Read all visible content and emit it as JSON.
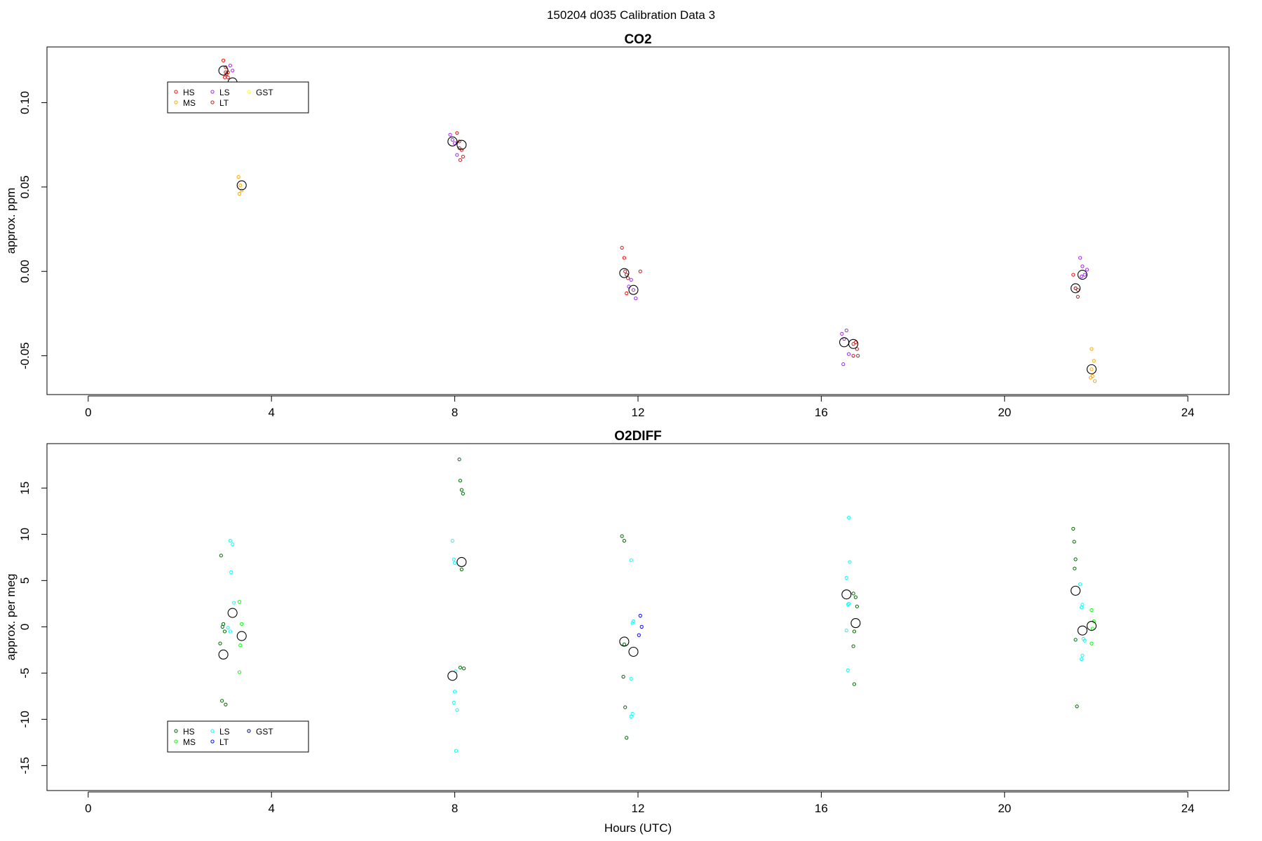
{
  "figure_title": "150204   d035   Calibration Data 3",
  "colors": {
    "HS": "#ff0000",
    "MS": "#ffa500",
    "LS": "#a020f0",
    "LT": "#b22222",
    "GST": "#ffff00",
    "HS2": "#006400",
    "MS2": "#00ff00",
    "LS2": "#00ffff",
    "LT2": "#0000ff",
    "GST2": "#00008b",
    "axis": "#000000",
    "mean": "#000000"
  },
  "chart_data": [
    {
      "type": "scatter",
      "title": "CO2",
      "xlabel": "",
      "ylabel": "approx. ppm",
      "xlim": [
        -0.9,
        24.9
      ],
      "ylim": [
        -0.073,
        0.133
      ],
      "xticks": [
        0,
        4,
        8,
        12,
        16,
        20,
        24
      ],
      "yticks": [
        -0.05,
        0.0,
        0.05,
        0.1
      ],
      "ytick_labels": [
        "-0.05",
        "0.00",
        "0.05",
        "0.10"
      ],
      "legend": {
        "position": "top-left",
        "entries": [
          "HS",
          "MS",
          "LS",
          "LT",
          "GST"
        ]
      },
      "series": [
        {
          "name": "HS",
          "color": "#ff0000",
          "x": [
            2.95,
            3.0,
            3.05,
            2.98,
            3.02,
            8.05,
            8.1,
            8.15,
            11.65,
            11.7,
            11.72,
            11.75,
            12.05,
            16.7,
            16.75,
            21.5,
            21.55,
            21.6
          ],
          "y": [
            0.125,
            0.121,
            0.118,
            0.115,
            0.117,
            0.082,
            0.077,
            0.072,
            0.014,
            0.008,
            0.0,
            -0.013,
            0.0,
            -0.05,
            -0.042,
            -0.002,
            -0.01,
            -0.015
          ]
        },
        {
          "name": "MS",
          "color": "#ffa500",
          "x": [
            3.28,
            3.32,
            3.35,
            3.3,
            21.9,
            21.95,
            21.9,
            21.92,
            21.97,
            21.88
          ],
          "y": [
            0.056,
            0.051,
            0.048,
            0.046,
            -0.046,
            -0.053,
            -0.058,
            -0.062,
            -0.065,
            -0.063
          ]
        },
        {
          "name": "LS",
          "color": "#a020f0",
          "x": [
            3.1,
            3.15,
            7.9,
            7.95,
            8.0,
            8.05,
            11.85,
            11.9,
            11.95,
            11.8,
            16.45,
            16.5,
            16.55,
            16.6,
            16.48,
            21.65,
            21.7,
            21.75,
            21.8,
            21.68
          ],
          "y": [
            0.122,
            0.119,
            0.081,
            0.078,
            0.076,
            0.069,
            -0.005,
            -0.011,
            -0.016,
            -0.009,
            -0.037,
            -0.04,
            -0.035,
            -0.049,
            -0.055,
            0.008,
            0.003,
            -0.002,
            0.001,
            -0.003
          ]
        },
        {
          "name": "LT",
          "color": "#b22222",
          "x": [
            3.0,
            3.05,
            8.1,
            8.18,
            8.12,
            11.75,
            11.78,
            16.7,
            16.78,
            16.8,
            21.55,
            21.6
          ],
          "y": [
            0.118,
            0.115,
            0.073,
            0.068,
            0.066,
            -0.002,
            -0.004,
            -0.043,
            -0.046,
            -0.05,
            -0.01,
            -0.011
          ]
        }
      ],
      "means": {
        "x": [
          2.95,
          3.15,
          3.35,
          7.95,
          8.15,
          11.7,
          11.9,
          16.5,
          16.7,
          21.55,
          21.7,
          21.9
        ],
        "y": [
          0.119,
          0.112,
          0.051,
          0.077,
          0.075,
          -0.001,
          -0.011,
          -0.042,
          -0.043,
          -0.01,
          -0.002,
          -0.058
        ]
      }
    },
    {
      "type": "scatter",
      "title": "O2DIFF",
      "xlabel": "Hours (UTC)",
      "ylabel": "approx. per meg",
      "xlim": [
        -0.9,
        24.9
      ],
      "ylim": [
        -17.7,
        19.8
      ],
      "xticks": [
        0,
        4,
        8,
        12,
        16,
        20,
        24
      ],
      "yticks": [
        -15,
        -10,
        -5,
        0,
        5,
        10,
        15
      ],
      "ytick_labels": [
        "-15",
        "-10",
        "-5",
        "0",
        "5",
        "10",
        "15"
      ],
      "legend": {
        "position": "bottom-left",
        "entries": [
          "HS",
          "MS",
          "LS",
          "LT",
          "GST"
        ]
      },
      "series": [
        {
          "name": "HS",
          "color": "#006400",
          "x": [
            2.9,
            2.95,
            2.93,
            2.98,
            2.88,
            2.92,
            3.0,
            8.1,
            8.12,
            8.15,
            8.18,
            8.15,
            8.12,
            8.2,
            11.65,
            11.7,
            11.68,
            11.72,
            11.75,
            11.7,
            16.7,
            16.75,
            16.78,
            16.72,
            16.7,
            16.72,
            21.5,
            21.52,
            21.55,
            21.53,
            21.55,
            21.58
          ],
          "y": [
            7.7,
            0.3,
            0.0,
            -0.5,
            -1.8,
            -8.0,
            -8.4,
            18.1,
            15.8,
            14.8,
            14.4,
            6.2,
            -4.4,
            -4.5,
            9.8,
            9.3,
            -5.4,
            -8.7,
            -12.0,
            -1.9,
            3.6,
            3.2,
            2.2,
            -0.5,
            -2.1,
            -6.2,
            10.6,
            9.2,
            7.3,
            6.3,
            -1.4,
            -8.6
          ]
        },
        {
          "name": "MS",
          "color": "#00ff00",
          "x": [
            3.3,
            3.35,
            3.32,
            3.3,
            21.9,
            21.95,
            21.92,
            21.9
          ],
          "y": [
            2.7,
            0.3,
            -2.0,
            -4.9,
            1.8,
            0.6,
            -0.2,
            -1.8
          ]
        },
        {
          "name": "LS",
          "color": "#00ffff",
          "x": [
            3.1,
            3.15,
            3.12,
            3.18,
            3.05,
            3.1,
            7.95,
            7.98,
            8.0,
            8.02,
            8.0,
            7.98,
            8.05,
            8.03,
            11.85,
            11.88,
            11.9,
            11.85,
            11.88,
            11.85,
            16.6,
            16.62,
            16.55,
            16.58,
            16.6,
            16.55,
            16.58,
            21.65,
            21.7,
            21.68,
            21.72,
            21.75,
            21.7,
            21.68
          ],
          "y": [
            9.3,
            8.9,
            5.9,
            2.6,
            -0.1,
            -0.5,
            9.3,
            7.3,
            6.9,
            -4.8,
            -7.0,
            -8.2,
            -9.0,
            -13.4,
            7.2,
            0.4,
            0.6,
            -5.6,
            -9.4,
            -9.7,
            11.8,
            7.0,
            5.3,
            2.4,
            2.5,
            -0.4,
            -4.7,
            4.6,
            2.4,
            2.1,
            -1.3,
            -1.5,
            -3.1,
            -3.5
          ]
        },
        {
          "name": "LT",
          "color": "#0000ff",
          "x": [
            12.05,
            12.08,
            12.02
          ],
          "y": [
            1.2,
            0.0,
            -0.9
          ]
        }
      ],
      "means": {
        "x": [
          2.95,
          3.15,
          3.35,
          7.95,
          8.15,
          11.7,
          11.9,
          16.55,
          16.75,
          21.55,
          21.7,
          21.9
        ],
        "y": [
          -3.0,
          1.5,
          -1.0,
          -5.3,
          7.0,
          -1.6,
          -2.7,
          3.5,
          0.4,
          3.9,
          -0.4,
          0.1
        ]
      }
    }
  ]
}
